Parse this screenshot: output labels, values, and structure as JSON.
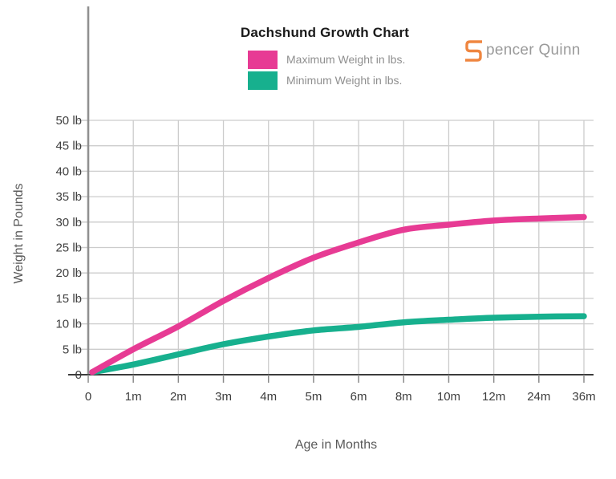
{
  "header": {
    "title": "Dachshund Growth Chart"
  },
  "logo": {
    "brand_initial_icon": "squared-s-icon",
    "brand_rest": "pencer Quinn",
    "accent_color": "#ef8640",
    "text_color": "#9a9a9a"
  },
  "legend": [
    {
      "label": "Maximum Weight in lbs.",
      "color": "#e73b94"
    },
    {
      "label": "Minimum Weight in lbs.",
      "color": "#17b08e"
    }
  ],
  "axes": {
    "y_title": "Weight in Pounds",
    "x_title": "Age in Months"
  },
  "chart_data": {
    "type": "line",
    "title": "Dachshund Growth Chart",
    "xlabel": "Age in Months",
    "ylabel": "Weight in Pounds",
    "categories": [
      "0",
      "1m",
      "2m",
      "3m",
      "4m",
      "5m",
      "6m",
      "8m",
      "10m",
      "12m",
      "24m",
      "36m"
    ],
    "series": [
      {
        "name": "Maximum Weight in lbs.",
        "color": "#e73b94",
        "values": [
          0.5,
          5,
          9.5,
          14.5,
          19,
          23,
          26,
          28.5,
          29.5,
          30.3,
          30.7,
          31
        ]
      },
      {
        "name": "Minimum Weight in lbs.",
        "color": "#17b08e",
        "values": [
          0.5,
          2,
          4,
          6,
          7.5,
          8.7,
          9.4,
          10.3,
          10.8,
          11.2,
          11.4,
          11.5
        ]
      }
    ],
    "y_ticks": [
      {
        "value": 0,
        "label": "0"
      },
      {
        "value": 5,
        "label": "5 lb"
      },
      {
        "value": 10,
        "label": "10 lb"
      },
      {
        "value": 15,
        "label": "15 lb"
      },
      {
        "value": 20,
        "label": "20 lb"
      },
      {
        "value": 25,
        "label": "25 lb"
      },
      {
        "value": 30,
        "label": "30 lb"
      },
      {
        "value": 35,
        "label": "35 lb"
      },
      {
        "value": 40,
        "label": "40 lb"
      },
      {
        "value": 45,
        "label": "45 lb"
      },
      {
        "value": 50,
        "label": "50 lb"
      }
    ],
    "ylim": [
      0,
      50
    ],
    "grid": true,
    "grid_color": "#cccccc",
    "axis_line_color": "#3c3c3c",
    "y_axis_line_color": "#909090",
    "tick_label_color": "#3e3e3e",
    "legend_position": "top-center"
  }
}
